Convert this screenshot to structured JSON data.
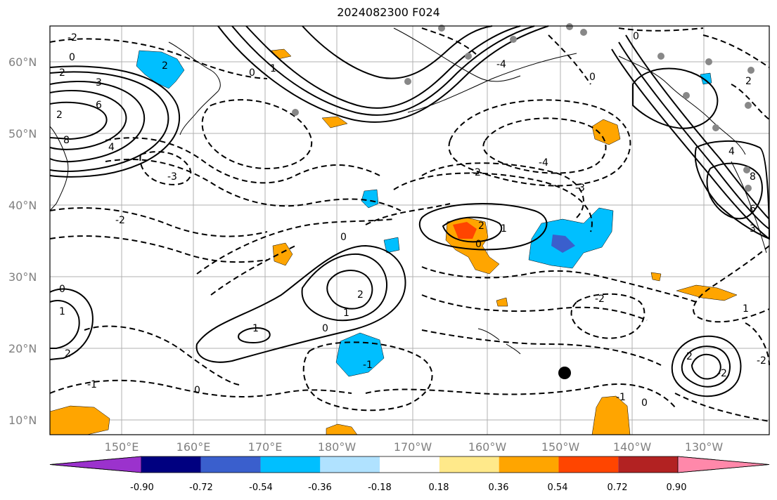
{
  "title": "2024082300 F024",
  "map": {
    "lat_labels": [
      "60°N",
      "50°N",
      "40°N",
      "30°N",
      "20°N",
      "10°N"
    ],
    "lon_labels": [
      "150°E",
      "160°E",
      "170°E",
      "180°W",
      "170°W",
      "160°W",
      "150°W",
      "140°W",
      "130°W"
    ],
    "contour_labels": [
      "-2",
      "0",
      "2",
      "3",
      "2",
      "6",
      "8",
      "4",
      "2",
      "0",
      "-3",
      "-2",
      "1",
      "0",
      "-2",
      "-4",
      "-3",
      "0",
      "2",
      "1",
      "0",
      "2",
      "1",
      "-1",
      "0",
      "-2",
      "-1",
      "0",
      "-1",
      "1",
      "2",
      "0",
      "-2",
      "0",
      "2",
      "4",
      "8",
      "6",
      "3",
      "1",
      "-1",
      "2",
      "-2",
      "-4",
      "0"
    ]
  },
  "colorbar": {
    "tick_labels": [
      "-0.90",
      "-0.72",
      "-0.54",
      "-0.36",
      "-0.18",
      "0.18",
      "0.36",
      "0.54",
      "0.72",
      "0.90"
    ],
    "colors": [
      "#9b32cd",
      "#000080",
      "#3a5fcd",
      "#00bfff",
      "#b0e2ff",
      "#ffffff",
      "#ffe98a",
      "#ffa500",
      "#ff4500",
      "#b22222",
      "#ff88aa"
    ]
  }
}
